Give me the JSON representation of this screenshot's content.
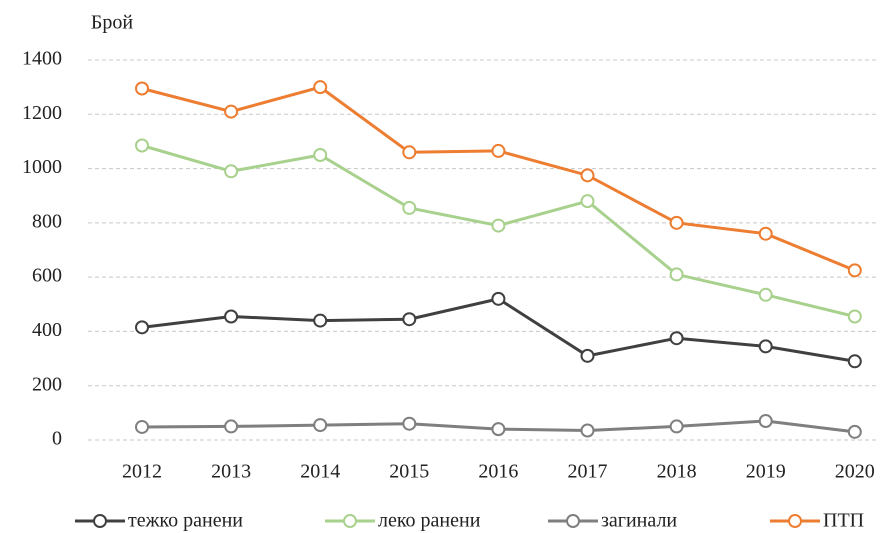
{
  "chart_data": {
    "type": "line",
    "y_label": "Брой",
    "categories": [
      "2012",
      "2013",
      "2014",
      "2015",
      "2016",
      "2017",
      "2018",
      "2019",
      "2020"
    ],
    "series": [
      {
        "name": "тежко ранени",
        "color": "#404040",
        "values": [
          415,
          455,
          440,
          445,
          520,
          310,
          375,
          345,
          290
        ]
      },
      {
        "name": "леко ранени",
        "color": "#a9d18e",
        "values": [
          1085,
          990,
          1050,
          855,
          790,
          880,
          610,
          535,
          455
        ]
      },
      {
        "name": "загинали",
        "color": "#7f7f7f",
        "values": [
          48,
          50,
          55,
          60,
          40,
          35,
          50,
          70,
          30
        ]
      },
      {
        "name": "ПТП",
        "color": "#ed7d31",
        "values": [
          1295,
          1210,
          1300,
          1060,
          1065,
          975,
          800,
          760,
          625
        ]
      }
    ],
    "ylim": [
      0,
      1400
    ],
    "yticks": [
      0,
      200,
      400,
      600,
      800,
      1000,
      1200,
      1400
    ],
    "grid": true
  }
}
